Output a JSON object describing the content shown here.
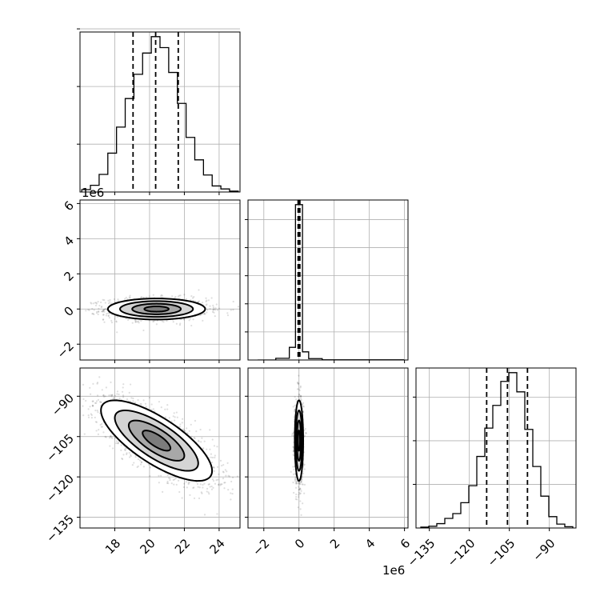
{
  "chart_data": {
    "type": "corner",
    "params": [
      "p0",
      "p1",
      "p2"
    ],
    "offset_labels": {
      "p1_y": "1e6",
      "p1_x": "1e6"
    },
    "ticks": {
      "p0": {
        "values": [
          18,
          20,
          22,
          24
        ],
        "labels": [
          "18",
          "20",
          "22",
          "24"
        ]
      },
      "p1": {
        "values": [
          -2,
          0,
          2,
          4,
          6
        ],
        "labels": [
          "−2",
          "0",
          "2",
          "4",
          "6"
        ]
      },
      "p2": {
        "values": [
          -135,
          -120,
          -105,
          -90
        ],
        "labels": [
          "−135",
          "−120",
          "−105",
          "−90"
        ]
      }
    },
    "ranges": {
      "p0": [
        16.0,
        25.2
      ],
      "p1": [
        -2.9,
        6.2
      ],
      "p2_vertical": [
        -139.0,
        -79.5
      ],
      "p2_horizontal": [
        -140.0,
        -80.0
      ]
    },
    "hist1d": [
      {
        "param": "p0",
        "bin_edges": [
          16.1,
          16.6,
          17.1,
          17.6,
          18.1,
          18.6,
          19.1,
          19.6,
          20.1,
          20.6,
          21.1,
          21.6,
          22.1,
          22.6,
          23.1,
          23.6,
          24.1,
          24.6,
          25.1
        ],
        "counts": [
          0.4,
          1.1,
          2.9,
          6.4,
          10.7,
          15.4,
          19.4,
          22.9,
          25.6,
          23.8,
          19.7,
          14.6,
          9.0,
          5.3,
          2.8,
          1.0,
          0.5,
          0.15
        ],
        "quantiles": [
          19.05,
          20.35,
          21.65
        ]
      },
      {
        "param": "p1",
        "bin_edges": [
          -2.35,
          -1.32,
          -0.55,
          -0.2,
          0.2,
          0.55,
          1.32,
          5.95
        ],
        "counts": [
          0.0,
          0.6,
          4.5,
          55.3,
          2.9,
          0.5,
          0.05
        ],
        "quantiles": [
          -0.05,
          0.0,
          0.05
        ]
      },
      {
        "param": "p2",
        "bin_edges": [
          -138.2,
          -135.2,
          -132.2,
          -129.2,
          -126.2,
          -123.2,
          -120.2,
          -117.2,
          -114.2,
          -111.2,
          -108.2,
          -105.2,
          -102.2,
          -99.2,
          -96.2,
          -93.2,
          -90.2,
          -87.2,
          -84.2,
          -81.2
        ],
        "counts": [
          0.2,
          0.4,
          1.0,
          2.2,
          3.3,
          5.8,
          9.7,
          16.4,
          22.9,
          28.1,
          33.6,
          35.6,
          31.2,
          22.6,
          14.1,
          7.3,
          2.6,
          0.9,
          0.3
        ],
        "quantiles": [
          -113.5,
          -105.7,
          -98.2
        ]
      }
    ],
    "hist2d": [
      {
        "x_param": "p0",
        "y_param": "p1",
        "center": [
          20.4,
          0.0
        ],
        "sigma": [
          1.4,
          0.3
        ],
        "rho": 0.0,
        "contour_levels": [
          0.118,
          0.393,
          0.675,
          0.864
        ],
        "points": 1400
      },
      {
        "x_param": "p0",
        "y_param": "p2",
        "center": [
          20.4,
          -106.5
        ],
        "sigma": [
          1.6,
          7.5
        ],
        "rho": -0.75,
        "contour_levels": [
          0.118,
          0.393,
          0.675,
          0.864
        ],
        "points": 1900
      },
      {
        "x_param": "p1",
        "y_param": "p2",
        "center": [
          0.0,
          -106.5
        ],
        "sigma": [
          0.12,
          7.5
        ],
        "rho": 0.0,
        "contour_levels": [
          0.118,
          0.393,
          0.675,
          0.864
        ],
        "points": 1100
      }
    ]
  }
}
